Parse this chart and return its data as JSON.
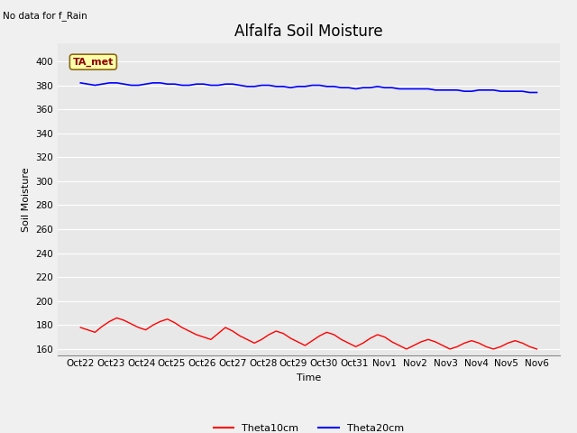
{
  "title": "Alfalfa Soil Moisture",
  "no_data_text": "No data for f_Rain",
  "ta_met_label": "TA_met",
  "ylabel": "Soil Moisture",
  "xlabel": "Time",
  "ylim": [
    155,
    415
  ],
  "yticks": [
    160,
    180,
    200,
    220,
    240,
    260,
    280,
    300,
    320,
    340,
    360,
    380,
    400
  ],
  "xtick_labels": [
    "Oct 22",
    "Oct 23",
    "Oct 24",
    "Oct 25",
    "Oct 26",
    "Oct 27",
    "Oct 28",
    "Oct 29",
    "Oct 30",
    "Oct 31",
    "Nov 1",
    "Nov 2",
    "Nov 3",
    "Nov 4",
    "Nov 5",
    "Nov 6"
  ],
  "background_color": "#e8e8e8",
  "fig_background": "#f0f0f0",
  "theta10_color": "#ff0000",
  "theta20_color": "#0000ff",
  "theta10_label": "Theta10cm",
  "theta20_label": "Theta20cm",
  "theta10_data": [
    178,
    176,
    174,
    179,
    183,
    186,
    184,
    181,
    178,
    176,
    180,
    183,
    185,
    182,
    178,
    175,
    172,
    170,
    168,
    173,
    178,
    175,
    171,
    168,
    165,
    168,
    172,
    175,
    173,
    169,
    166,
    163,
    167,
    171,
    174,
    172,
    168,
    165,
    162,
    165,
    169,
    172,
    170,
    166,
    163,
    160,
    163,
    166,
    168,
    166,
    163,
    160,
    162,
    165,
    167,
    165,
    162,
    160,
    162,
    165,
    167,
    165,
    162,
    160
  ],
  "theta20_data": [
    382,
    381,
    380,
    381,
    382,
    382,
    381,
    380,
    380,
    381,
    382,
    382,
    381,
    381,
    380,
    380,
    381,
    381,
    380,
    380,
    381,
    381,
    380,
    379,
    379,
    380,
    380,
    379,
    379,
    378,
    379,
    379,
    380,
    380,
    379,
    379,
    378,
    378,
    377,
    378,
    378,
    379,
    378,
    378,
    377,
    377,
    377,
    377,
    377,
    376,
    376,
    376,
    376,
    375,
    375,
    376,
    376,
    376,
    375,
    375,
    375,
    375,
    374,
    374
  ],
  "n_points": 64,
  "title_fontsize": 12,
  "axis_fontsize": 8,
  "tick_fontsize": 7.5,
  "legend_fontsize": 8,
  "no_data_fontsize": 7.5,
  "ta_met_fontsize": 8
}
